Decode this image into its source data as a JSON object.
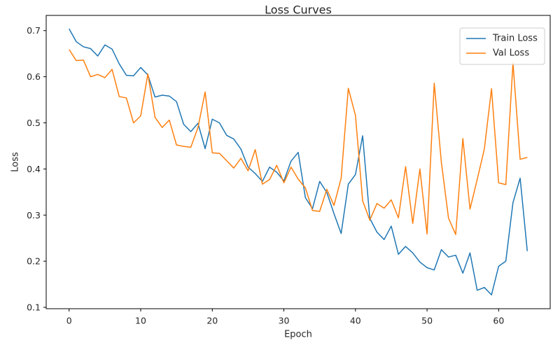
{
  "chart_data": {
    "type": "line",
    "title": "Loss Curves",
    "xlabel": "Epoch",
    "ylabel": "Loss",
    "xlim": [
      -3.2,
      67.2
    ],
    "ylim": [
      0.097,
      0.733
    ],
    "xticks": [
      0,
      10,
      20,
      30,
      40,
      50,
      60
    ],
    "yticks": [
      0.1,
      0.2,
      0.3,
      0.4,
      0.5,
      0.6,
      0.7
    ],
    "grid": false,
    "legend": "top-right",
    "x": [
      0,
      1,
      2,
      3,
      4,
      5,
      6,
      7,
      8,
      9,
      10,
      11,
      12,
      13,
      14,
      15,
      16,
      17,
      18,
      19,
      20,
      21,
      22,
      23,
      24,
      25,
      26,
      27,
      28,
      29,
      30,
      31,
      32,
      33,
      34,
      35,
      36,
      37,
      38,
      39,
      40,
      41,
      42,
      43,
      44,
      45,
      46,
      47,
      48,
      49,
      50,
      51,
      52,
      53,
      54,
      55,
      56,
      57,
      58,
      59,
      60,
      61,
      62,
      63,
      64
    ],
    "series": [
      {
        "name": "Train Loss",
        "color": "#1f77b4",
        "values": [
          0.704,
          0.676,
          0.665,
          0.661,
          0.645,
          0.669,
          0.66,
          0.628,
          0.603,
          0.602,
          0.62,
          0.604,
          0.556,
          0.56,
          0.558,
          0.546,
          0.497,
          0.481,
          0.499,
          0.444,
          0.508,
          0.5,
          0.473,
          0.465,
          0.443,
          0.404,
          0.39,
          0.373,
          0.404,
          0.393,
          0.374,
          0.417,
          0.436,
          0.338,
          0.314,
          0.373,
          0.349,
          0.303,
          0.26,
          0.367,
          0.388,
          0.472,
          0.293,
          0.263,
          0.247,
          0.276,
          0.215,
          0.232,
          0.218,
          0.198,
          0.186,
          0.181,
          0.225,
          0.209,
          0.213,
          0.174,
          0.218,
          0.137,
          0.143,
          0.127,
          0.189,
          0.2,
          0.327,
          0.38,
          0.222
        ]
      },
      {
        "name": "Val Loss",
        "color": "#ff7f0e",
        "values": [
          0.659,
          0.635,
          0.636,
          0.6,
          0.605,
          0.598,
          0.616,
          0.557,
          0.554,
          0.5,
          0.515,
          0.606,
          0.512,
          0.49,
          0.506,
          0.452,
          0.449,
          0.447,
          0.49,
          0.567,
          0.435,
          0.434,
          0.418,
          0.402,
          0.423,
          0.396,
          0.442,
          0.367,
          0.377,
          0.408,
          0.37,
          0.404,
          0.378,
          0.359,
          0.31,
          0.308,
          0.356,
          0.321,
          0.38,
          0.575,
          0.516,
          0.331,
          0.289,
          0.325,
          0.315,
          0.333,
          0.294,
          0.405,
          0.282,
          0.4,
          0.259,
          0.586,
          0.414,
          0.293,
          0.258,
          0.466,
          0.313,
          0.377,
          0.443,
          0.574,
          0.37,
          0.366,
          0.63,
          0.421,
          0.425
        ]
      }
    ]
  }
}
